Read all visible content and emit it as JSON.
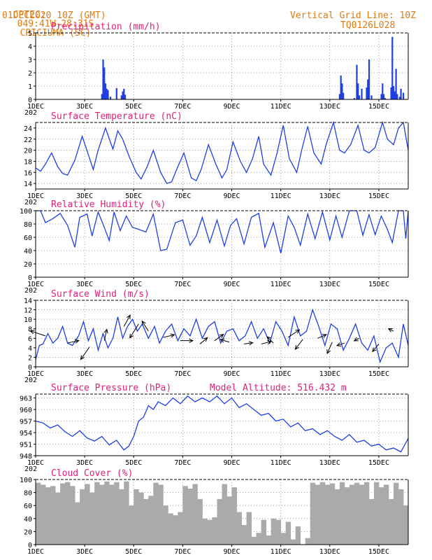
{
  "header": {
    "source": "CPTEC:",
    "coords": "049:41W-28:31S",
    "location": "CRICIUMA (SC)",
    "datetime": "01DEC2020 10Z (GMT)",
    "grid_note": "Vertical Grid Line: 10Z",
    "code": "TQ0126L028"
  },
  "colors": {
    "line": "#1f3fe0",
    "cloud": "#aaaaaa",
    "title": "#e0207a",
    "header": "#e07a10"
  },
  "x_axis": {
    "labels": [
      "1DEC",
      "3DEC",
      "5DEC",
      "7DEC",
      "9DEC",
      "11DEC",
      "13DEC",
      "15DEC"
    ],
    "positions_day": [
      0,
      2,
      4,
      6,
      8,
      10,
      12,
      14
    ],
    "range_days": [
      0,
      15.2
    ],
    "under_label": "202"
  },
  "chart_data": [
    {
      "type": "bar",
      "title": "Precipitation (mm/h)",
      "ylim": [
        0,
        5
      ],
      "yticks": [
        0,
        1,
        2,
        3,
        4,
        5
      ],
      "grid": true,
      "x": [
        2.7,
        2.75,
        2.8,
        2.85,
        2.9,
        2.95,
        3.05,
        3.3,
        3.5,
        3.55,
        3.6,
        3.65,
        12.4,
        12.45,
        12.5,
        12.55,
        13.0,
        13.1,
        13.15,
        13.2,
        13.3,
        13.5,
        13.55,
        13.6,
        13.7,
        14.1,
        14.15,
        14.2,
        14.25,
        14.5,
        14.55,
        14.6,
        14.65,
        14.7,
        14.75,
        14.85,
        14.9,
        15.0
      ],
      "values": [
        0.4,
        3.0,
        2.4,
        1.2,
        0.8,
        0.7,
        0.2,
        0.85,
        0.3,
        0.6,
        0.8,
        0.35,
        0.4,
        1.8,
        1.2,
        0.5,
        0.1,
        2.6,
        1.2,
        0.3,
        0.8,
        0.9,
        1.5,
        3.0,
        0.3,
        0.4,
        1.2,
        0.4,
        0.1,
        0.9,
        4.7,
        1.0,
        0.6,
        2.3,
        0.4,
        0.2,
        0.8,
        0.5
      ]
    },
    {
      "type": "line",
      "title": "Surface Temperature (nC)",
      "ylim": [
        13,
        25
      ],
      "yticks": [
        14,
        16,
        18,
        20,
        22,
        24
      ],
      "grid": true,
      "x": [
        0,
        0.2,
        0.4,
        0.65,
        0.9,
        1.1,
        1.3,
        1.6,
        1.9,
        2.15,
        2.35,
        2.55,
        2.85,
        3.15,
        3.35,
        3.55,
        3.8,
        4.1,
        4.3,
        4.55,
        4.8,
        5.1,
        5.35,
        5.55,
        5.75,
        6.05,
        6.35,
        6.55,
        6.75,
        7.05,
        7.35,
        7.6,
        7.8,
        8.05,
        8.35,
        8.6,
        8.85,
        9.1,
        9.3,
        9.6,
        9.85,
        10.1,
        10.35,
        10.65,
        10.85,
        11.1,
        11.35,
        11.65,
        11.85,
        12.15,
        12.4,
        12.6,
        12.85,
        13.15,
        13.4,
        13.6,
        13.85,
        14.15,
        14.35,
        14.6,
        14.8,
        15.0,
        15.2
      ],
      "values": [
        16.8,
        16.2,
        17.5,
        19.5,
        17.0,
        15.8,
        15.5,
        18.2,
        22.5,
        19.2,
        16.5,
        20.0,
        24.0,
        20.2,
        23.5,
        22.0,
        19.0,
        16.0,
        14.8,
        17.0,
        20.0,
        16.0,
        14.0,
        14.3,
        16.5,
        19.5,
        15.0,
        14.5,
        16.5,
        21.0,
        17.5,
        15.0,
        16.5,
        21.5,
        18.0,
        16.0,
        18.5,
        22.5,
        17.5,
        15.5,
        19.5,
        24.5,
        18.5,
        16.0,
        20.0,
        24.3,
        19.5,
        17.5,
        21.0,
        25.0,
        20.0,
        19.5,
        21.0,
        24.5,
        20.0,
        19.5,
        20.5,
        25.0,
        22.0,
        21.0,
        24.0,
        25.0,
        20.0
      ]
    },
    {
      "type": "line",
      "title": "Relative Humidity (%)",
      "ylim": [
        0,
        100
      ],
      "yticks": [
        0,
        20,
        40,
        60,
        80,
        100
      ],
      "grid": true,
      "x": [
        0,
        0.2,
        0.4,
        0.7,
        1.0,
        1.3,
        1.6,
        1.8,
        2.1,
        2.3,
        2.55,
        2.8,
        3.0,
        3.2,
        3.45,
        3.7,
        3.95,
        4.2,
        4.5,
        4.8,
        5.1,
        5.35,
        5.7,
        6.0,
        6.3,
        6.55,
        6.8,
        7.1,
        7.4,
        7.7,
        7.95,
        8.2,
        8.5,
        8.8,
        9.1,
        9.35,
        9.7,
        10.0,
        10.3,
        10.55,
        10.8,
        11.1,
        11.4,
        11.7,
        12.0,
        12.25,
        12.5,
        12.8,
        13.1,
        13.35,
        13.6,
        13.85,
        14.1,
        14.35,
        14.55,
        14.8,
        15.0,
        15.1,
        15.2
      ],
      "values": [
        100,
        100,
        82,
        88,
        96,
        78,
        45,
        90,
        95,
        62,
        98,
        75,
        55,
        98,
        70,
        92,
        75,
        72,
        68,
        95,
        40,
        42,
        82,
        86,
        48,
        62,
        90,
        52,
        86,
        47,
        78,
        88,
        50,
        90,
        96,
        45,
        82,
        36,
        92,
        75,
        48,
        95,
        58,
        98,
        56,
        92,
        60,
        100,
        100,
        63,
        94,
        64,
        92,
        72,
        52,
        100,
        100,
        58,
        100
      ]
    },
    {
      "type": "line",
      "title": "Surface Wind (m/s)",
      "ylim": [
        0,
        14
      ],
      "yticks": [
        0,
        2,
        4,
        6,
        8,
        10,
        12,
        14
      ],
      "grid": true,
      "x": [
        0,
        0.15,
        0.3,
        0.5,
        0.7,
        0.9,
        1.1,
        1.3,
        1.5,
        1.75,
        1.95,
        2.15,
        2.35,
        2.55,
        2.75,
        2.95,
        3.15,
        3.35,
        3.55,
        3.75,
        3.95,
        4.15,
        4.35,
        4.6,
        4.85,
        5.05,
        5.3,
        5.55,
        5.8,
        6.05,
        6.3,
        6.55,
        6.8,
        7.05,
        7.3,
        7.55,
        7.8,
        8.05,
        8.3,
        8.55,
        8.8,
        9.05,
        9.3,
        9.55,
        9.8,
        10.05,
        10.3,
        10.55,
        10.8,
        11.05,
        11.3,
        11.55,
        11.8,
        12.05,
        12.3,
        12.55,
        12.8,
        13.05,
        13.3,
        13.55,
        13.8,
        14.05,
        14.3,
        14.55,
        14.8,
        15.0,
        15.2
      ],
      "values": [
        1.5,
        4.5,
        4.8,
        7.0,
        5.0,
        6.0,
        8.5,
        5.0,
        4.5,
        6.5,
        9.5,
        5.5,
        8.0,
        3.5,
        7.0,
        4.0,
        6.0,
        10.5,
        6.0,
        8.5,
        10.0,
        7.5,
        9.0,
        6.0,
        8.5,
        5.0,
        7.5,
        9.0,
        5.5,
        8.0,
        6.5,
        10.0,
        6.0,
        8.5,
        9.5,
        5.0,
        7.5,
        8.0,
        5.5,
        6.5,
        9.5,
        6.0,
        8.0,
        5.0,
        9.5,
        7.5,
        4.5,
        10.5,
        6.5,
        7.5,
        12.0,
        8.5,
        4.5,
        9.0,
        8.0,
        3.5,
        6.0,
        9.0,
        5.0,
        3.5,
        6.5,
        1.0,
        4.0,
        5.0,
        2.0,
        9.0,
        4.5
      ],
      "arrows": {
        "x": [
          0.4,
          1.3,
          2.2,
          2.8,
          3.6,
          4.2,
          4.6,
          5.2,
          5.9,
          6.7,
          7.3,
          7.9,
          8.5,
          9.2,
          9.7,
          10.3,
          10.9,
          11.5,
          12.1,
          12.6,
          13.2,
          14.0,
          14.6
        ],
        "y": [
          6.5,
          5.0,
          4.2,
          5.5,
          8.5,
          9.0,
          7.5,
          6.2,
          5.5,
          4.8,
          5.5,
          5.2,
          4.8,
          4.8,
          5.0,
          6.2,
          5.8,
          6.0,
          5.2,
          5.0,
          6.0,
          4.8,
          7.5
        ],
        "u": [
          -1.2,
          0.9,
          -0.7,
          0.2,
          0.5,
          -0.7,
          -0.5,
          0.9,
          1.0,
          0.6,
          0.7,
          -0.7,
          0.7,
          0.8,
          -0.5,
          0.9,
          -0.6,
          0.7,
          -0.4,
          -0.6,
          -0.4,
          -0.5,
          -0.4
        ],
        "v": [
          0.4,
          0.2,
          -1.0,
          0.9,
          0.9,
          -1.1,
          0.8,
          0.2,
          0.0,
          0.5,
          0.5,
          0.2,
          0.1,
          0.2,
          0.5,
          0.6,
          -0.8,
          0.3,
          -0.9,
          -0.2,
          -0.2,
          -0.6,
          0.2
        ]
      }
    },
    {
      "type": "line",
      "title": "Surface Pressure (hPa)",
      "subtitle": "Model Altitude: 516.432 m",
      "ylim": [
        948,
        964
      ],
      "yticks": [
        948,
        951,
        954,
        957,
        960,
        963
      ],
      "grid": true,
      "x": [
        0,
        0.3,
        0.6,
        0.9,
        1.2,
        1.5,
        1.8,
        2.1,
        2.4,
        2.7,
        3.0,
        3.3,
        3.6,
        3.8,
        4.0,
        4.2,
        4.4,
        4.6,
        4.8,
        5.0,
        5.3,
        5.6,
        5.9,
        6.2,
        6.5,
        6.8,
        7.1,
        7.4,
        7.7,
        8.0,
        8.3,
        8.6,
        8.9,
        9.2,
        9.5,
        9.8,
        10.1,
        10.4,
        10.7,
        11.0,
        11.3,
        11.6,
        11.9,
        12.2,
        12.5,
        12.8,
        13.1,
        13.4,
        13.7,
        14.0,
        14.3,
        14.6,
        14.9,
        15.2
      ],
      "values": [
        957.0,
        956.5,
        955.2,
        956.0,
        954.2,
        953.0,
        954.5,
        952.6,
        951.8,
        953.0,
        950.8,
        952.0,
        949.5,
        950.5,
        953.0,
        957.0,
        958.0,
        961.0,
        960.0,
        962.0,
        961.0,
        963.0,
        961.5,
        963.5,
        962.0,
        963.0,
        962.0,
        963.5,
        961.5,
        963.0,
        960.5,
        961.5,
        960.0,
        958.5,
        959.0,
        957.0,
        957.5,
        955.5,
        956.5,
        954.5,
        955.0,
        953.5,
        954.5,
        953.0,
        952.0,
        953.5,
        951.5,
        952.0,
        950.5,
        951.0,
        949.5,
        950.0,
        949.0,
        952.5
      ]
    },
    {
      "type": "area",
      "title": "Cloud Cover (%)",
      "ylim": [
        0,
        100
      ],
      "yticks": [
        0,
        20,
        40,
        60,
        80,
        100
      ],
      "grid": true,
      "x": [
        0,
        0.2,
        0.4,
        0.6,
        0.8,
        1.0,
        1.2,
        1.4,
        1.6,
        1.8,
        2.0,
        2.2,
        2.4,
        2.6,
        2.8,
        3.0,
        3.2,
        3.4,
        3.6,
        3.8,
        4.0,
        4.2,
        4.4,
        4.6,
        4.8,
        5.0,
        5.2,
        5.4,
        5.6,
        5.8,
        6.0,
        6.2,
        6.4,
        6.6,
        6.8,
        7.0,
        7.2,
        7.4,
        7.6,
        7.8,
        8.0,
        8.2,
        8.4,
        8.6,
        8.8,
        9.0,
        9.2,
        9.4,
        9.6,
        9.8,
        10.0,
        10.2,
        10.4,
        10.6,
        10.8,
        11.0,
        11.2,
        11.4,
        11.6,
        11.8,
        12.0,
        12.2,
        12.4,
        12.6,
        12.8,
        13.0,
        13.2,
        13.4,
        13.6,
        13.8,
        14.0,
        14.2,
        14.4,
        14.6,
        14.8,
        15.0,
        15.2
      ],
      "values": [
        95,
        92,
        88,
        90,
        80,
        94,
        96,
        90,
        65,
        85,
        93,
        80,
        96,
        92,
        97,
        92,
        96,
        85,
        97,
        60,
        85,
        80,
        70,
        75,
        95,
        92,
        60,
        48,
        45,
        50,
        90,
        86,
        93,
        70,
        40,
        38,
        42,
        70,
        93,
        74,
        88,
        50,
        30,
        50,
        12,
        18,
        38,
        14,
        40,
        38,
        18,
        35,
        8,
        28,
        0,
        10,
        95,
        92,
        96,
        92,
        94,
        85,
        96,
        88,
        92,
        95,
        92,
        96,
        70,
        96,
        88,
        92,
        70,
        95,
        85,
        60,
        95
      ]
    }
  ]
}
